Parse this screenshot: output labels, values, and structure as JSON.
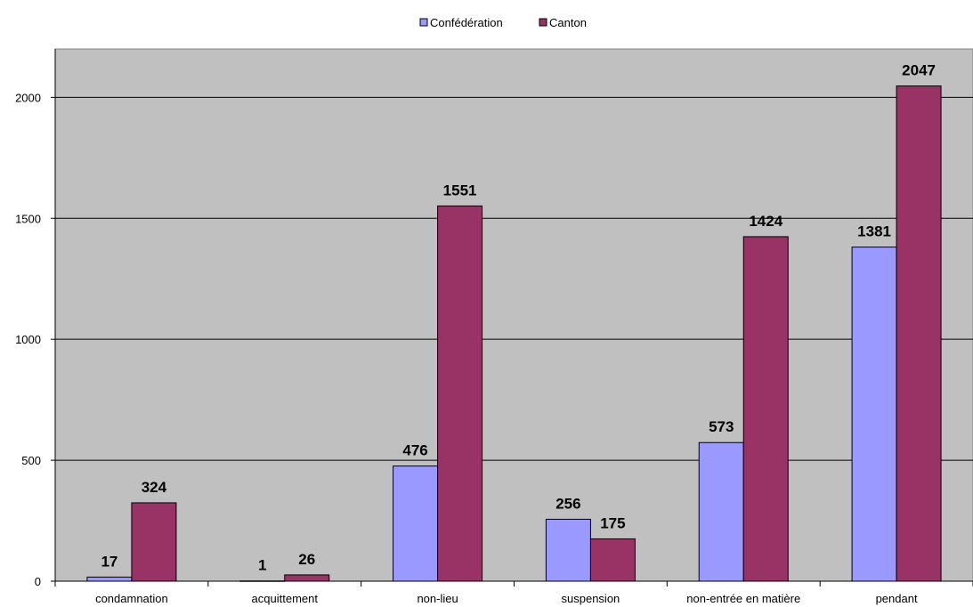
{
  "chart_data": {
    "type": "bar",
    "categories": [
      "condamnation",
      "acquittement",
      "non-lieu",
      "suspension",
      "non-entrée en matière",
      "pendant"
    ],
    "series": [
      {
        "name": "Confédération",
        "color": "#9999ff",
        "values": [
          17,
          1,
          476,
          256,
          573,
          1381
        ]
      },
      {
        "name": "Canton",
        "color": "#993366",
        "values": [
          324,
          26,
          1551,
          175,
          1424,
          2047
        ]
      }
    ],
    "yticks": [
      0,
      500,
      1000,
      1500,
      2000
    ],
    "ylim": [
      0,
      2200
    ],
    "grid": true,
    "legend_position": "top",
    "plot_background": "#c0c0c0"
  }
}
